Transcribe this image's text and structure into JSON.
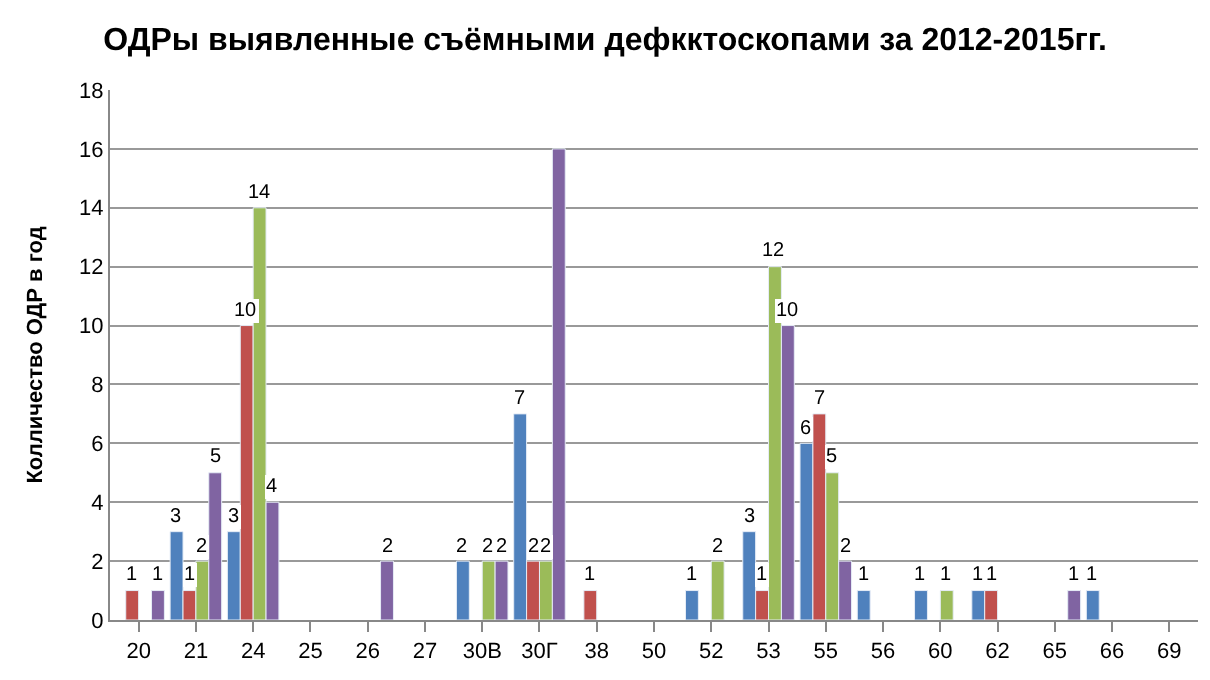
{
  "chart_data": {
    "type": "bar",
    "title": "ОДРы выявленные съёмными дефкктоскопами за 2012-2015гг.",
    "ylabel": "Колличество ОДР в год",
    "categories": [
      "20",
      "21",
      "24",
      "25",
      "26",
      "27",
      "30В",
      "30Г",
      "38",
      "50",
      "52",
      "53",
      "55",
      "56",
      "60",
      "62",
      "65",
      "66",
      "69"
    ],
    "series": [
      {
        "color": "#4f81bd",
        "values": [
          null,
          3,
          3,
          null,
          null,
          null,
          2,
          7,
          null,
          null,
          1,
          3,
          6,
          1,
          1,
          1,
          null,
          1,
          null
        ],
        "value_labels": [
          null,
          "3",
          "3",
          null,
          null,
          null,
          "2",
          "7",
          null,
          null,
          "1",
          "3",
          "6",
          "1",
          "1",
          "1",
          null,
          "1",
          null
        ]
      },
      {
        "color": "#c0504d",
        "values": [
          1,
          1,
          10,
          null,
          null,
          null,
          null,
          2,
          1,
          null,
          null,
          1,
          7,
          null,
          null,
          1,
          null,
          null,
          null
        ],
        "value_labels": [
          "1",
          "1",
          "10",
          null,
          null,
          null,
          null,
          "2",
          "1",
          null,
          null,
          "1",
          "7",
          null,
          null,
          "1",
          null,
          null,
          null
        ]
      },
      {
        "color": "#9bbb59",
        "values": [
          null,
          2,
          14,
          null,
          null,
          null,
          2,
          2,
          null,
          null,
          2,
          12,
          5,
          null,
          1,
          null,
          null,
          null,
          null
        ],
        "value_labels": [
          null,
          "2",
          "14",
          null,
          null,
          null,
          "2",
          "2",
          null,
          null,
          "2",
          "12",
          "5",
          null,
          "1",
          null,
          null,
          null,
          null
        ]
      },
      {
        "color": "#8064a2",
        "values": [
          1,
          5,
          4,
          null,
          2,
          null,
          2,
          16,
          null,
          null,
          null,
          10,
          2,
          null,
          null,
          null,
          1,
          null,
          null
        ],
        "value_labels": [
          "1",
          "5",
          "4",
          null,
          "2",
          null,
          "2",
          null,
          null,
          null,
          null,
          "10",
          "2",
          null,
          null,
          null,
          "1",
          null,
          null
        ]
      }
    ],
    "ylim": [
      0,
      18
    ],
    "yticks": [
      0,
      2,
      4,
      6,
      8,
      10,
      12,
      14,
      16,
      18
    ],
    "grid": "y",
    "legend": false
  }
}
